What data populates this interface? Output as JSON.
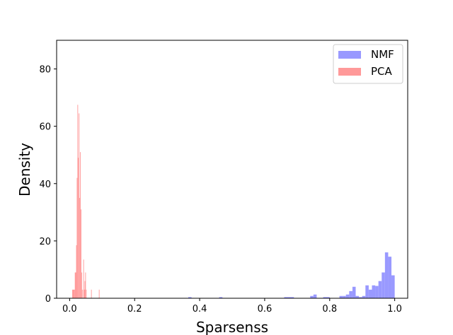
{
  "chart_data": {
    "type": "histogram",
    "xlabel": "Sparsenss",
    "ylabel": "Density",
    "xlim": [
      -0.04,
      1.04
    ],
    "ylim": [
      0,
      90
    ],
    "xticks": [
      "0.0",
      "0.2",
      "0.4",
      "0.6",
      "0.8",
      "1.0"
    ],
    "yticks": [
      "0",
      "20",
      "40",
      "60",
      "80"
    ],
    "grid": false,
    "legend_position": "top-right",
    "series": [
      {
        "name": "NMF",
        "color": "#9999ff",
        "bins": [
          {
            "x0": 0.365,
            "x1": 0.375,
            "y": 0.4
          },
          {
            "x0": 0.46,
            "x1": 0.47,
            "y": 0.4
          },
          {
            "x0": 0.66,
            "x1": 0.69,
            "y": 0.4
          },
          {
            "x0": 0.74,
            "x1": 0.75,
            "y": 0.8
          },
          {
            "x0": 0.75,
            "x1": 0.76,
            "y": 1.3
          },
          {
            "x0": 0.78,
            "x1": 0.8,
            "y": 0.4
          },
          {
            "x0": 0.83,
            "x1": 0.84,
            "y": 0.8
          },
          {
            "x0": 0.84,
            "x1": 0.85,
            "y": 0.8
          },
          {
            "x0": 0.85,
            "x1": 0.86,
            "y": 1.3
          },
          {
            "x0": 0.86,
            "x1": 0.87,
            "y": 2.5
          },
          {
            "x0": 0.87,
            "x1": 0.88,
            "y": 4.0
          },
          {
            "x0": 0.88,
            "x1": 0.89,
            "y": 0.8
          },
          {
            "x0": 0.89,
            "x1": 0.9,
            "y": 0.4
          },
          {
            "x0": 0.9,
            "x1": 0.91,
            "y": 0.8
          },
          {
            "x0": 0.91,
            "x1": 0.92,
            "y": 4.5
          },
          {
            "x0": 0.92,
            "x1": 0.93,
            "y": 3.0
          },
          {
            "x0": 0.93,
            "x1": 0.94,
            "y": 4.5
          },
          {
            "x0": 0.94,
            "x1": 0.95,
            "y": 4.3
          },
          {
            "x0": 0.95,
            "x1": 0.96,
            "y": 6.0
          },
          {
            "x0": 0.96,
            "x1": 0.97,
            "y": 9.0
          },
          {
            "x0": 0.97,
            "x1": 0.98,
            "y": 16.0
          },
          {
            "x0": 0.98,
            "x1": 0.99,
            "y": 14.5
          },
          {
            "x0": 0.99,
            "x1": 1.0,
            "y": 8.0
          }
        ]
      },
      {
        "name": "PCA",
        "color": "#ff9999",
        "bins": [
          {
            "x0": 0.008,
            "x1": 0.016,
            "y": 3.0
          },
          {
            "x0": 0.016,
            "x1": 0.02,
            "y": 9.0
          },
          {
            "x0": 0.02,
            "x1": 0.022,
            "y": 18.5
          },
          {
            "x0": 0.022,
            "x1": 0.024,
            "y": 42.0
          },
          {
            "x0": 0.024,
            "x1": 0.026,
            "y": 67.5
          },
          {
            "x0": 0.026,
            "x1": 0.028,
            "y": 49.0
          },
          {
            "x0": 0.028,
            "x1": 0.03,
            "y": 64.5
          },
          {
            "x0": 0.03,
            "x1": 0.032,
            "y": 35.0
          },
          {
            "x0": 0.032,
            "x1": 0.034,
            "y": 51.0
          },
          {
            "x0": 0.034,
            "x1": 0.036,
            "y": 31.0
          },
          {
            "x0": 0.036,
            "x1": 0.038,
            "y": 9.0
          },
          {
            "x0": 0.038,
            "x1": 0.04,
            "y": 3.0
          },
          {
            "x0": 0.04,
            "x1": 0.042,
            "y": 0.0
          },
          {
            "x0": 0.042,
            "x1": 0.044,
            "y": 13.5
          },
          {
            "x0": 0.044,
            "x1": 0.046,
            "y": 3.0
          },
          {
            "x0": 0.046,
            "x1": 0.048,
            "y": 6.0
          },
          {
            "x0": 0.048,
            "x1": 0.05,
            "y": 9.0
          },
          {
            "x0": 0.05,
            "x1": 0.052,
            "y": 3.0
          },
          {
            "x0": 0.066,
            "x1": 0.068,
            "y": 3.0
          },
          {
            "x0": 0.09,
            "x1": 0.092,
            "y": 3.0
          }
        ]
      }
    ]
  }
}
